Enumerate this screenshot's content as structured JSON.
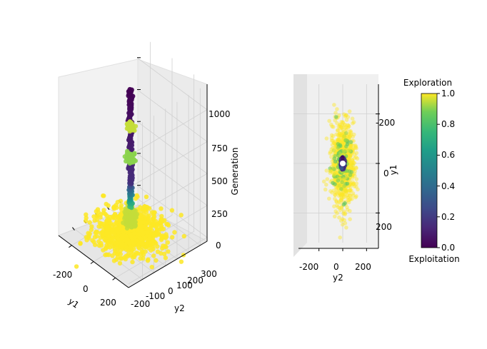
{
  "chart_data": [
    {
      "type": "scatter",
      "projection": "3d",
      "xlabel": "y1",
      "ylabel": "y2",
      "zlabel": "Generation",
      "x_ticks": [
        "-200",
        "0",
        "200"
      ],
      "y_ticks": [
        "-200",
        "-100",
        "0",
        "100",
        "200",
        "300"
      ],
      "z_ticks": [
        "0",
        "250",
        "500",
        "750",
        "1000"
      ],
      "xlim": [
        -320,
        320
      ],
      "ylim": [
        -320,
        360
      ],
      "zlim": [
        -30,
        1200
      ],
      "grid": true,
      "color_by": "Exploration",
      "series": [
        {
          "kind": "cloud",
          "z": [
            0,
            60
          ],
          "spread": 240,
          "exploration": 1.0
        },
        {
          "kind": "cloud",
          "z": [
            80,
            200
          ],
          "spread": 40,
          "exploration": 0.95
        },
        {
          "kind": "column",
          "z": [
            230,
            420
          ],
          "exploration": [
            0.2,
            0.8
          ]
        },
        {
          "kind": "column",
          "z": [
            420,
            1150
          ],
          "exploration": [
            0.0,
            0.15
          ]
        },
        {
          "kind": "cluster",
          "z": [
            580,
            650
          ],
          "spread": 30,
          "exploration": 0.9
        },
        {
          "kind": "cluster",
          "z": [
            830,
            880
          ],
          "spread": 30,
          "exploration": 0.95
        }
      ]
    },
    {
      "type": "scatter",
      "projection": "top-view",
      "xlabel": "y2",
      "ylabel": "y1",
      "x_ticks": [
        "-200",
        "0",
        "200"
      ],
      "y_ticks": [
        "-200",
        "0",
        "200"
      ],
      "xlim": [
        -300,
        300
      ],
      "ylim": [
        -320,
        320
      ],
      "grid": true,
      "color_by": "Exploration",
      "series": [
        {
          "kind": "cloud",
          "spread": 90,
          "exploration": 1.0
        },
        {
          "kind": "core",
          "spread": 25,
          "exploration": [
            0.0,
            0.4
          ]
        }
      ]
    }
  ],
  "colorbar": {
    "title": "Exploration",
    "bottom_label": "Exploitation",
    "ticks": [
      "0.0",
      "0.2",
      "0.4",
      "0.6",
      "0.8",
      "1.0"
    ],
    "range": [
      0.0,
      1.0
    ],
    "colormap": "viridis"
  }
}
